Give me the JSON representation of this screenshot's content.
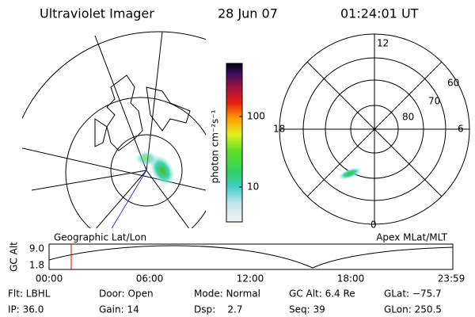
{
  "header": {
    "title": "Ultraviolet Imager",
    "date": "28 Jun 07",
    "time": "01:24:01 UT"
  },
  "colorbar": {
    "label": "photon cm⁻²s⁻¹",
    "ticks": [
      "100",
      "10"
    ]
  },
  "polar": {
    "labels": [
      "12",
      "60",
      "70",
      "80",
      "18",
      "6",
      "0"
    ]
  },
  "panels": {
    "left": "Geographic Lat/Lon",
    "right": "Apex MLat/MLT"
  },
  "altitude_plot": {
    "ylabel": "GC Alt",
    "yticks": [
      "9.0",
      "1.8"
    ],
    "xticks": [
      "00:00",
      "06:00",
      "12:00",
      "18:00",
      "23:59"
    ]
  },
  "info": {
    "flt": "Flt: LBHL",
    "ip": "IP: 36.0",
    "door": "Door: Open",
    "gain": "Gain: 14",
    "mode": "Mode: Normal",
    "dsp": "Dsp:    2.7",
    "gcalt": "GC Alt: 6.4 Re",
    "seq": "Seq: 39",
    "glat": "GLat: −75.7",
    "glon": "GLon: 250.5"
  }
}
